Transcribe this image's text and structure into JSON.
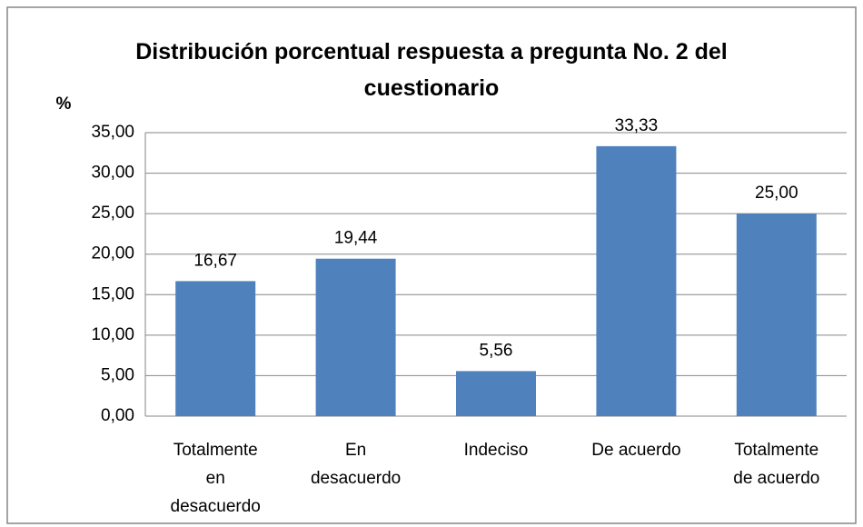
{
  "chart_data": {
    "type": "bar",
    "title": "Distribución porcentual respuesta a pregunta No. 2 del cuestionario",
    "y_label": "%",
    "categories": [
      "Totalmente en desacuerdo",
      "En desacuerdo",
      "Indeciso",
      "De acuerdo",
      "Totalmente de acuerdo"
    ],
    "values": [
      16.67,
      19.44,
      5.56,
      33.33,
      25.0
    ],
    "value_labels": [
      "16,67",
      "19,44",
      "5,56",
      "33,33",
      "25,00"
    ],
    "color": "#4f81bd",
    "ylim": [
      0,
      35
    ],
    "yticks": [
      {
        "value": 0,
        "label": "0,00"
      },
      {
        "value": 5,
        "label": "5,00"
      },
      {
        "value": 10,
        "label": "10,00"
      },
      {
        "value": 15,
        "label": "15,00"
      },
      {
        "value": 20,
        "label": "20,00"
      },
      {
        "value": 25,
        "label": "25,00"
      },
      {
        "value": 30,
        "label": "30,00"
      },
      {
        "value": 35,
        "label": "35,00"
      }
    ],
    "grid": true
  }
}
